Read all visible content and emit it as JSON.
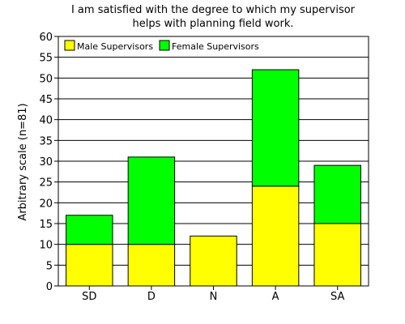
{
  "chart_data": {
    "type": "bar",
    "stacked": true,
    "title": [
      "I am satisfied with the degree to which my supervisor",
      "helps with planning field work."
    ],
    "xlabel": "",
    "ylabel": "Arbitrary scale (n=81)",
    "categories": [
      "SD",
      "D",
      "N",
      "A",
      "SA"
    ],
    "series": [
      {
        "name": "Male Supervisors",
        "color": "#ffff00",
        "values": [
          10,
          10,
          12,
          24,
          15
        ]
      },
      {
        "name": "Female Supervisors",
        "color": "#00ff00",
        "values": [
          7,
          21,
          0,
          28,
          14
        ]
      }
    ],
    "ylim": [
      0,
      60
    ],
    "yticks": [
      0,
      5,
      10,
      15,
      20,
      25,
      30,
      35,
      40,
      45,
      50,
      55,
      60
    ],
    "grid": true,
    "legend_position": "top-left"
  }
}
